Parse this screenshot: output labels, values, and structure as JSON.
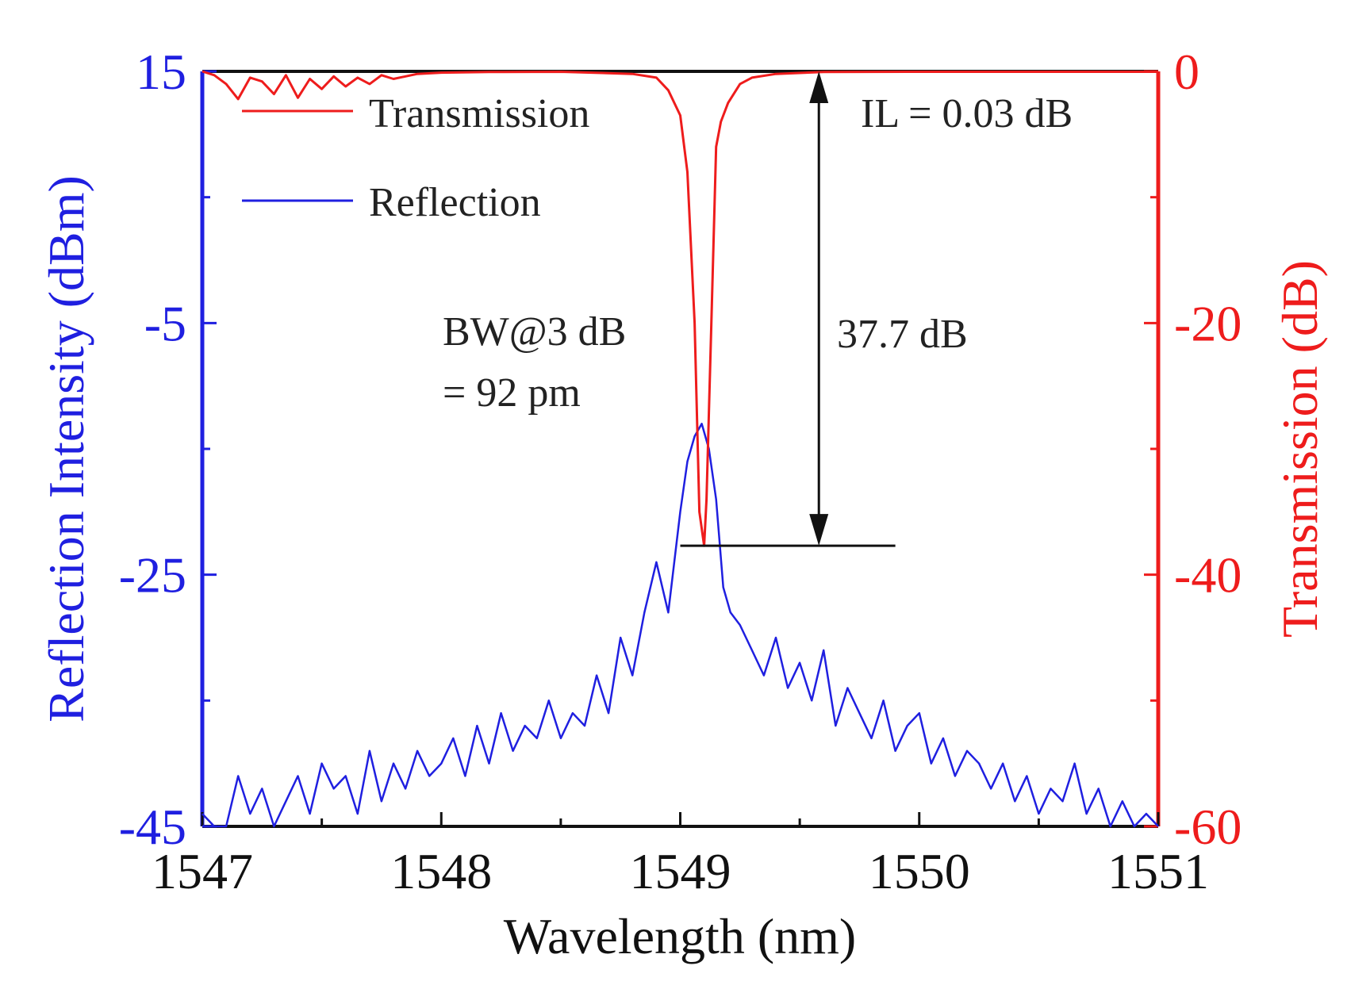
{
  "chart_data": {
    "type": "line",
    "title": "",
    "xlabel": "Wavelength (nm)",
    "ylabel_left": "Reflection Intensity (dBm)",
    "ylabel_right": "Transmission (dB)",
    "xlim": [
      1547,
      1551
    ],
    "ylim_left": [
      -45,
      15
    ],
    "ylim_right": [
      -60,
      0
    ],
    "x_ticks": [
      "1547",
      "1548",
      "1549",
      "1550",
      "1551"
    ],
    "y_left_ticks": [
      "15",
      "-5",
      "-25",
      "-45"
    ],
    "y_right_ticks": [
      "0",
      "-20",
      "-40",
      "-60"
    ],
    "legend": [
      "Transmission",
      "Reflection"
    ],
    "colors": {
      "reflection": "#1f1fe0",
      "transmission": "#ee1c1c",
      "axes": "#111111",
      "annotation": "#111111"
    },
    "annotations": {
      "il": "IL = 0.03 dB",
      "bw_line1": "BW@3 dB",
      "bw_line2": "= 92 pm",
      "depth": "37.7 dB"
    },
    "markers": {
      "arrow_x": 1549.58,
      "arrow_top_db": 0,
      "arrow_bottom_db": -37.7,
      "baseline_x_start": 1549.0,
      "baseline_x_end": 1549.9
    },
    "series": [
      {
        "name": "Transmission",
        "axis": "right",
        "x": [
          1547.0,
          1547.05,
          1547.1,
          1547.15,
          1547.2,
          1547.25,
          1547.3,
          1547.35,
          1547.4,
          1547.45,
          1547.5,
          1547.55,
          1547.6,
          1547.65,
          1547.7,
          1547.75,
          1547.8,
          1547.9,
          1548.0,
          1548.2,
          1548.5,
          1548.8,
          1548.9,
          1548.95,
          1549.0,
          1549.03,
          1549.06,
          1549.08,
          1549.1,
          1549.11,
          1549.13,
          1549.15,
          1549.17,
          1549.2,
          1549.25,
          1549.3,
          1549.4,
          1549.6,
          1550.0,
          1550.5,
          1551.0
        ],
        "values": [
          0,
          -0.3,
          -1.0,
          -2.2,
          -0.5,
          -0.8,
          -1.8,
          -0.3,
          -2.1,
          -0.6,
          -1.4,
          -0.4,
          -1.2,
          -0.5,
          -1.0,
          -0.3,
          -0.6,
          -0.2,
          -0.1,
          -0.05,
          -0.03,
          -0.2,
          -0.5,
          -1.5,
          -3.5,
          -8,
          -20,
          -35,
          -37.7,
          -34,
          -20,
          -6,
          -4,
          -2.5,
          -1.0,
          -0.5,
          -0.2,
          -0.05,
          -0.03,
          -0.03,
          -0.03
        ]
      },
      {
        "name": "Reflection",
        "axis": "left",
        "x": [
          1547.0,
          1547.05,
          1547.1,
          1547.15,
          1547.2,
          1547.25,
          1547.3,
          1547.35,
          1547.4,
          1547.45,
          1547.5,
          1547.55,
          1547.6,
          1547.65,
          1547.7,
          1547.75,
          1547.8,
          1547.85,
          1547.9,
          1547.95,
          1548.0,
          1548.05,
          1548.1,
          1548.15,
          1548.2,
          1548.25,
          1548.3,
          1548.35,
          1548.4,
          1548.45,
          1548.5,
          1548.55,
          1548.6,
          1548.65,
          1548.7,
          1548.75,
          1548.8,
          1548.85,
          1548.9,
          1548.95,
          1549.0,
          1549.03,
          1549.06,
          1549.09,
          1549.12,
          1549.15,
          1549.18,
          1549.21,
          1549.25,
          1549.3,
          1549.35,
          1549.4,
          1549.45,
          1549.5,
          1549.55,
          1549.6,
          1549.65,
          1549.7,
          1549.75,
          1549.8,
          1549.85,
          1549.9,
          1549.95,
          1550.0,
          1550.05,
          1550.1,
          1550.15,
          1550.2,
          1550.25,
          1550.3,
          1550.35,
          1550.4,
          1550.45,
          1550.5,
          1550.55,
          1550.6,
          1550.65,
          1550.7,
          1550.75,
          1550.8,
          1550.85,
          1550.9,
          1550.95,
          1551.0
        ],
        "values": [
          -44,
          -45,
          -45,
          -41,
          -44,
          -42,
          -45,
          -43,
          -41,
          -44,
          -40,
          -42,
          -41,
          -44,
          -39,
          -43,
          -40,
          -42,
          -39,
          -41,
          -40,
          -38,
          -41,
          -37,
          -40,
          -36,
          -39,
          -37,
          -38,
          -35,
          -38,
          -36,
          -37,
          -33,
          -36,
          -30,
          -33,
          -28,
          -24,
          -28,
          -20,
          -16,
          -14,
          -13,
          -15,
          -19,
          -26,
          -28,
          -29,
          -31,
          -33,
          -30,
          -34,
          -32,
          -35,
          -31,
          -37,
          -34,
          -36,
          -38,
          -35,
          -39,
          -37,
          -36,
          -40,
          -38,
          -41,
          -39,
          -40,
          -42,
          -40,
          -43,
          -41,
          -44,
          -42,
          -43,
          -40,
          -44,
          -42,
          -45,
          -43,
          -45,
          -44,
          -45
        ]
      }
    ]
  }
}
